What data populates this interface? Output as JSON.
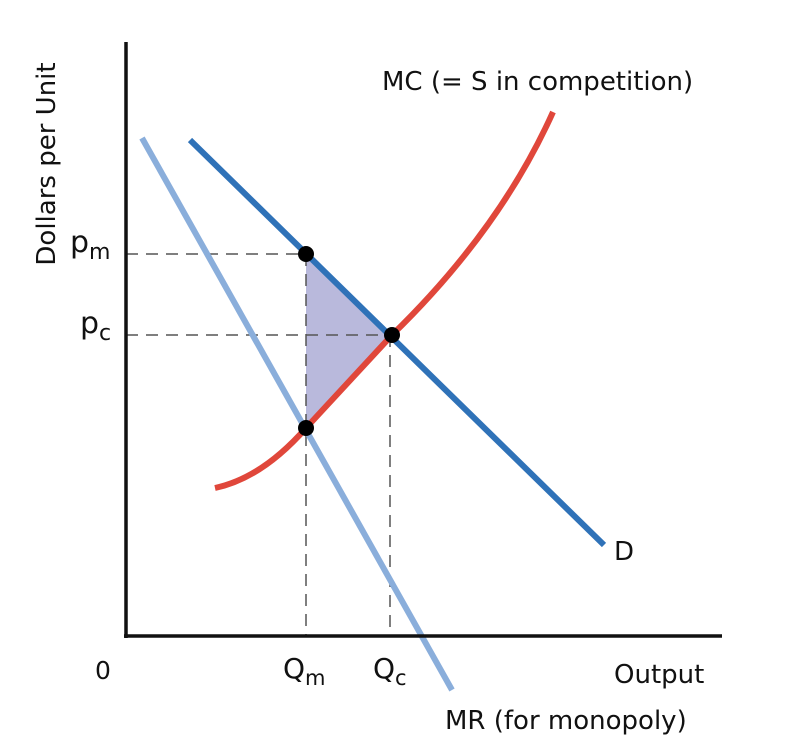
{
  "axes": {
    "y_label": "Dollars per Unit",
    "x_label": "Output",
    "origin_label": "0"
  },
  "price_labels": {
    "monopoly": {
      "main": "p",
      "sub": "m"
    },
    "competitive": {
      "main": "p",
      "sub": "c"
    }
  },
  "quantity_labels": {
    "monopoly": {
      "main": "Q",
      "sub": "m"
    },
    "competitive": {
      "main": "Q",
      "sub": "c"
    }
  },
  "curve_labels": {
    "mc": "MC (= S in competition)",
    "demand": "D",
    "mr": "MR (for monopoly)"
  },
  "colors": {
    "demand": "#2f72b8",
    "mr": "#8aaedb",
    "mc": "#e0473b",
    "deadweight_loss": "#b9b9dc",
    "axis": "#111111",
    "guide": "#555555",
    "point": "#000000"
  }
}
